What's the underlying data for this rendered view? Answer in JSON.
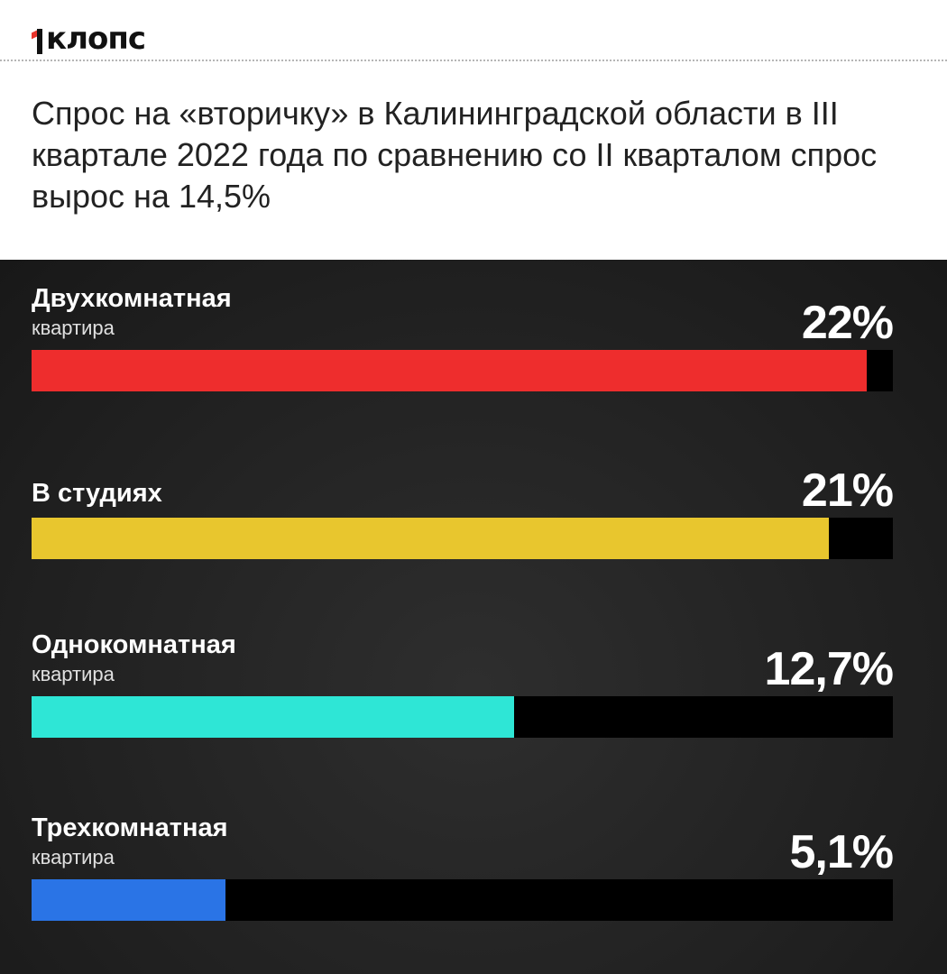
{
  "brand": {
    "logo_text": "клопс"
  },
  "headline": "Спрос на «вторичку» в Калининградской области в III квартале 2022 года по сравнению со II кварталом спрос вырос на 14,5%",
  "chart_data": {
    "type": "bar",
    "orientation": "horizontal",
    "categories": [
      {
        "label": "Двухкомнатная",
        "sublabel": "квартира",
        "value": 22,
        "display": "22%",
        "color": "#ee2d2d"
      },
      {
        "label": "В студиях",
        "sublabel": "",
        "value": 21,
        "display": "21%",
        "color": "#e8c62e"
      },
      {
        "label": "Однокомнатная",
        "sublabel": "квартира",
        "value": 12.7,
        "display": "12,7%",
        "color": "#2ee6d6"
      },
      {
        "label": "Трехкомнатная",
        "sublabel": "квартира",
        "value": 5.1,
        "display": "5,1%",
        "color": "#2a74e6"
      }
    ],
    "track_color": "#000000",
    "grid": false,
    "legend": "none"
  }
}
